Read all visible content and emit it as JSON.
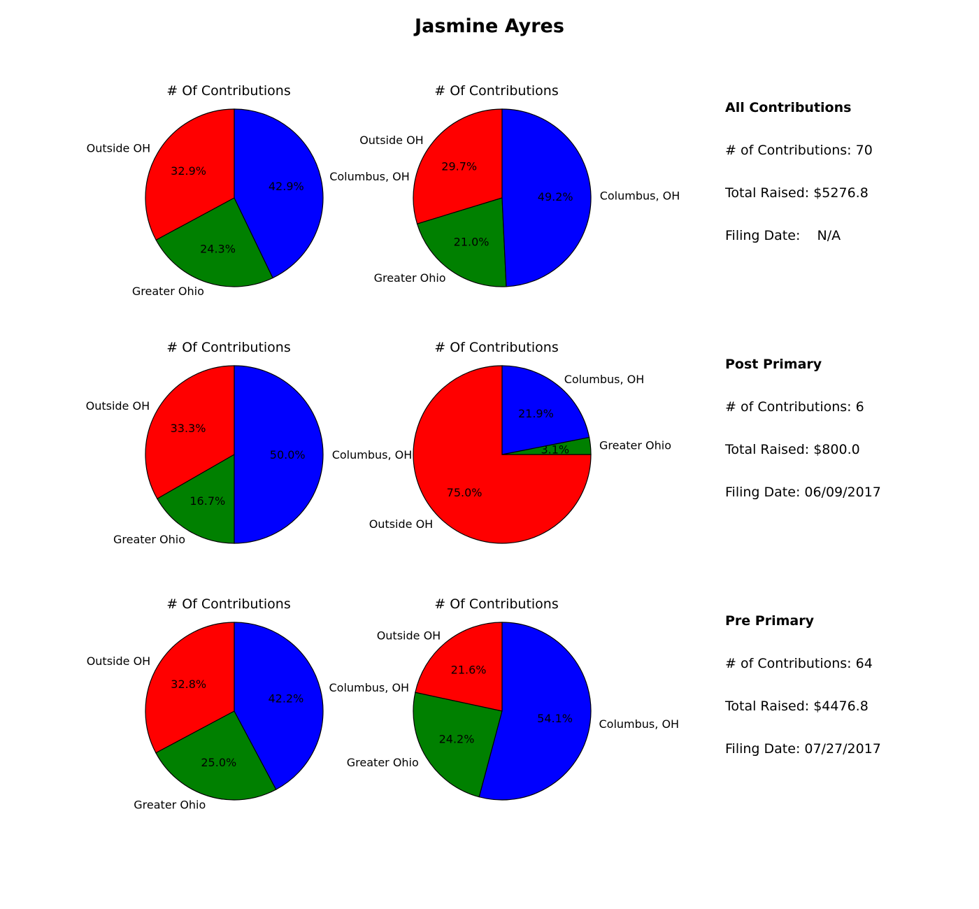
{
  "title": "Jasmine Ayres",
  "colors": {
    "Columbus, OH": "#0000ff",
    "Greater Ohio": "#008000",
    "Outside OH": "#ff0000"
  },
  "chart_data": [
    {
      "type": "pie",
      "title": "# Of Contributions",
      "labels": [
        "Outside OH",
        "Greater Ohio",
        "Columbus, OH"
      ],
      "values": [
        32.9,
        24.3,
        42.9
      ],
      "percent_labels": [
        "32.9%",
        "24.3%",
        "42.9%"
      ],
      "slice_colors": [
        "#ff0000",
        "#008000",
        "#0000ff"
      ]
    },
    {
      "type": "pie",
      "title": "# Of Contributions",
      "labels": [
        "Outside OH",
        "Greater Ohio",
        "Columbus, OH"
      ],
      "values": [
        29.7,
        21.0,
        49.2
      ],
      "percent_labels": [
        "29.7%",
        "21.0%",
        "49.2%"
      ],
      "slice_colors": [
        "#ff0000",
        "#008000",
        "#0000ff"
      ]
    },
    {
      "type": "pie",
      "title": "# Of Contributions",
      "labels": [
        "Outside OH",
        "Greater Ohio",
        "Columbus, OH"
      ],
      "values": [
        33.3,
        16.7,
        50.0
      ],
      "percent_labels": [
        "33.3%",
        "16.7%",
        "50.0%"
      ],
      "slice_colors": [
        "#ff0000",
        "#008000",
        "#0000ff"
      ]
    },
    {
      "type": "pie",
      "title": "# Of Contributions",
      "labels": [
        "Outside OH",
        "Greater Ohio",
        "Columbus, OH"
      ],
      "values": [
        75.0,
        3.1,
        21.9
      ],
      "percent_labels": [
        "75.0%",
        "3.1%",
        "21.9%"
      ],
      "slice_colors": [
        "#ff0000",
        "#008000",
        "#0000ff"
      ]
    },
    {
      "type": "pie",
      "title": "# Of Contributions",
      "labels": [
        "Outside OH",
        "Greater Ohio",
        "Columbus, OH"
      ],
      "values": [
        32.8,
        25.0,
        42.2
      ],
      "percent_labels": [
        "32.8%",
        "25.0%",
        "42.2%"
      ],
      "slice_colors": [
        "#ff0000",
        "#008000",
        "#0000ff"
      ]
    },
    {
      "type": "pie",
      "title": "# Of Contributions",
      "labels": [
        "Outside OH",
        "Greater Ohio",
        "Columbus, OH"
      ],
      "values": [
        21.6,
        24.2,
        54.1
      ],
      "percent_labels": [
        "21.6%",
        "24.2%",
        "54.1%"
      ],
      "slice_colors": [
        "#ff0000",
        "#008000",
        "#0000ff"
      ]
    }
  ],
  "summaries": [
    {
      "heading": "All Contributions",
      "count_text": "# of Contributions: 70",
      "raised_text": "Total Raised: $5276.8",
      "date_text": "Filing Date:    N/A"
    },
    {
      "heading": "Post Primary",
      "count_text": "# of Contributions: 6",
      "raised_text": "Total Raised: $800.0",
      "date_text": "Filing Date: 06/09/2017"
    },
    {
      "heading": "Pre Primary",
      "count_text": "# of Contributions: 64",
      "raised_text": "Total Raised: $4476.8",
      "date_text": "Filing Date: 07/27/2017"
    }
  ]
}
